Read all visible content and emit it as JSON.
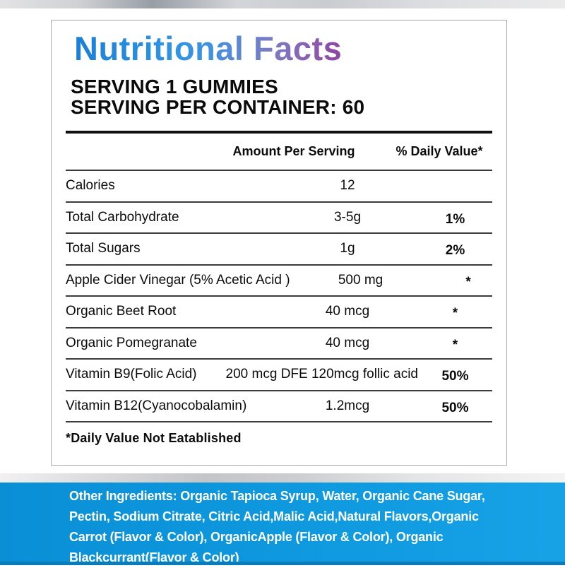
{
  "panel": {
    "title": "Nutritional Facts",
    "serving_lines": [
      "SERVING 1 GUMMIES",
      "SERVING PER CONTAINER: 60"
    ],
    "columns": {
      "amount": "Amount Per Serving",
      "daily_value": "% Daily Value*"
    },
    "rows": [
      {
        "name": "Calories",
        "amount": "12",
        "dv": ""
      },
      {
        "name": "Total Carbohydrate",
        "amount": "3-5g",
        "dv": "1%"
      },
      {
        "name": "Total Sugars",
        "amount": "1g",
        "dv": "2%"
      },
      {
        "name": "Apple Cider Vinegar (5% Acetic Acid )",
        "amount": "500 mg",
        "dv": "*"
      },
      {
        "name": "Organic Beet Root",
        "amount": "40 mcg",
        "dv": "*"
      },
      {
        "name": "Organic Pomegranate",
        "amount": "40 mcg",
        "dv": "*"
      },
      {
        "name": "Vitamin B9(Folic Acid)",
        "amount": "200 mcg DFE 120mcg follic acid",
        "dv": "50%"
      },
      {
        "name": "Vitamin B12(Cyanocobalamin)",
        "amount": "1.2mcg",
        "dv": "50%"
      }
    ],
    "footnote": "*Daily Value Not Eatablished"
  },
  "ingredients": {
    "lines": [
      "Other Ingredients: Organic Tapioca Syrup, Water, Organic Cane Sugar,",
      "Pectin, Sodium Citrate, Citric Acid,Malic Acid,Natural Flavors,Organic",
      "Carrot (Flavor & Color), OrganicApple (Flavor & Color), Organic",
      "Blackcurrant(Flavor & Color)"
    ]
  },
  "colors": {
    "title_gradient": [
      "#1b7fd6",
      "#2e93e4",
      "#7a7cc4",
      "#8f3da0",
      "#d28cc0",
      "#5a3f9c"
    ],
    "band_blue": "#0e97dd",
    "band_blue_dark": "#0a7cba",
    "divider_black": "#101010",
    "text_black": "#0b0b0b",
    "panel_border_gray": "#a9a9ad"
  }
}
